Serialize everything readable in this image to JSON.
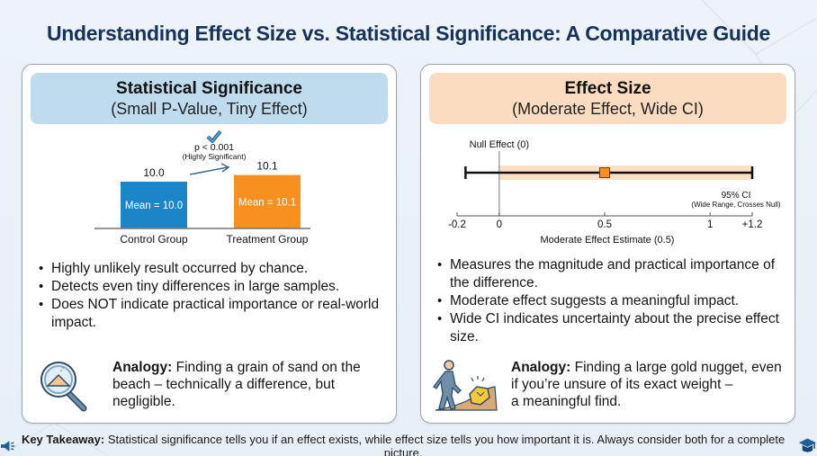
{
  "title": "Understanding Effect Size vs. Statistical Significance: A Comparative Guide",
  "left_panel": {
    "title": "Statistical Significance",
    "subtitle": "(Small P-Value, Tiny Effect)",
    "chart": {
      "bars": [
        {
          "label": "Control Group",
          "value": 10.0,
          "value_label": "10.0",
          "inner_label": "Mean = 10.0",
          "color": "#1a86c8"
        },
        {
          "label": "Treatment Group",
          "value": 10.1,
          "value_label": "10.1",
          "inner_label": "Mean = 10.1",
          "color": "#f7901e"
        }
      ],
      "annotation": "p < 0.001",
      "annotation_sub": "(Highly Significant)"
    },
    "bullets": [
      "Highly unlikely result occurred by chance.",
      "Detects even tiny differences in large samples.",
      "Does NOT indicate practical importance or real-world impact."
    ],
    "analogy_label": "Analogy:",
    "analogy_text": "Finding a grain of sand on the beach – technically a difference, but negligible.",
    "icon": "magnifier-sand-icon"
  },
  "right_panel": {
    "title": "Effect Size",
    "subtitle": "(Moderate Effect, Wide CI)",
    "chart": {
      "null_label": "Null Effect (0)",
      "estimate": 0.5,
      "ci_low": -0.16,
      "ci_high": 1.2,
      "shaded_low": 0,
      "shaded_high": 1.2,
      "ci_label": "95% CI",
      "ci_sub": "(Wide Range, Crosses Null)",
      "axis_min": -0.2,
      "axis_max": 1.2,
      "ticks": [
        {
          "value": -0.2,
          "label": "-0.2"
        },
        {
          "value": 0,
          "label": "0"
        },
        {
          "value": 0.5,
          "label": "0.5"
        },
        {
          "value": 1,
          "label": "1"
        },
        {
          "value": 1.2,
          "label": "+1.2"
        }
      ],
      "xlabel": "Moderate Effect Estimate (0.5)",
      "accent": "#f7901e",
      "band_color": "#fde0c4"
    },
    "bullets": [
      "Measures the magnitude and practical importance of the difference.",
      "Moderate effect suggests a meaningful impact.",
      "Wide CI indicates uncertainty about the precise effect size."
    ],
    "analogy_label": "Analogy:",
    "analogy_lines": [
      "Finding a large gold nugget, even",
      "if you’re unsure of its exact weight –",
      "a meaningful find."
    ],
    "icon": "hiker-gold-nugget-icon"
  },
  "footer": {
    "label": "Key Takeaway:",
    "text": "Statistical significance tells you if an effect exists, while effect size tells you how important it is. Always consider both for a complete picture.",
    "left_icon": "megaphone-icon",
    "right_icon": "graduation-cap-icon"
  }
}
